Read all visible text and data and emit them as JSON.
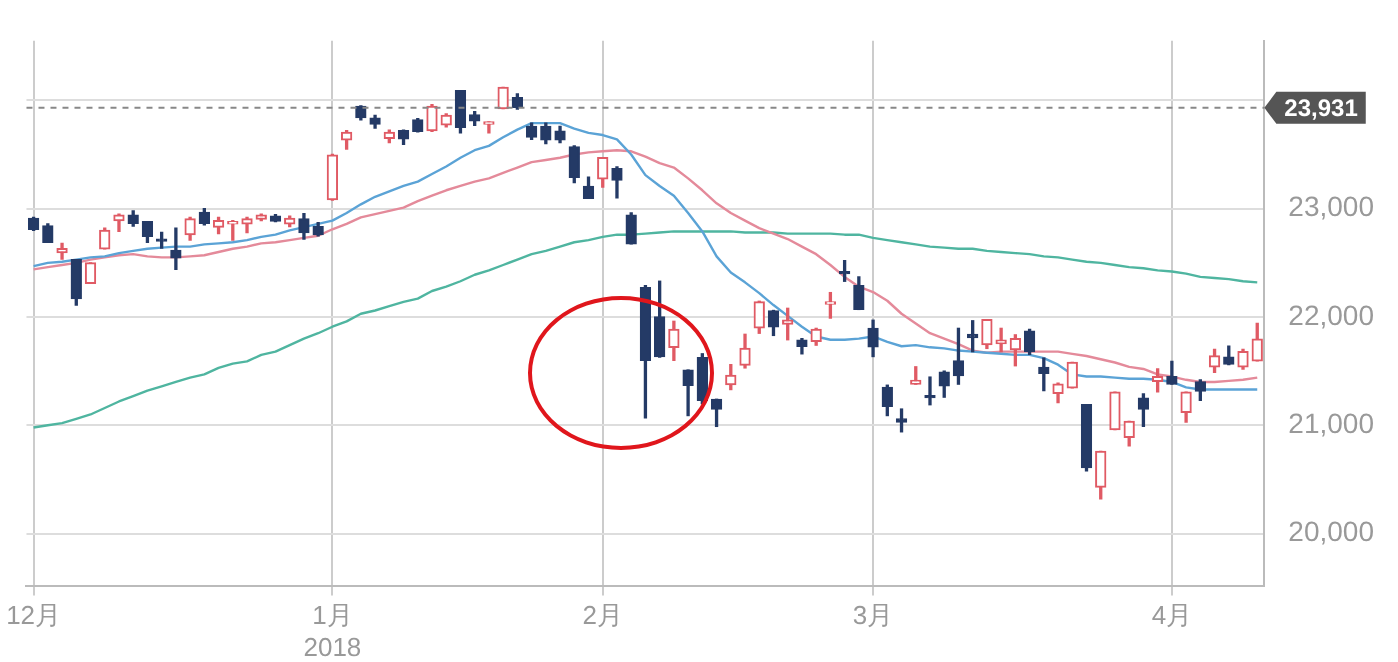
{
  "chart_data": {
    "type": "candlestick",
    "categories": [
      "12月",
      null,
      null,
      null,
      null,
      null,
      null,
      null,
      null,
      null,
      null,
      null,
      null,
      null,
      null,
      null,
      null,
      null,
      null,
      null,
      null,
      "1月\n2018",
      null,
      null,
      null,
      null,
      null,
      null,
      null,
      null,
      null,
      null,
      null,
      null,
      null,
      null,
      null,
      null,
      null,
      null,
      "2月",
      null,
      null,
      null,
      null,
      null,
      null,
      null,
      null,
      null,
      null,
      null,
      null,
      null,
      null,
      null,
      null,
      null,
      null,
      "3月",
      null,
      null,
      null,
      null,
      null,
      null,
      null,
      null,
      null,
      null,
      null,
      null,
      null,
      null,
      null,
      null,
      null,
      null,
      null,
      null,
      "4月",
      null,
      null,
      null,
      null,
      null,
      null
    ],
    "ohlc": [
      [
        22910,
        22920,
        22800,
        22810
      ],
      [
        22840,
        22860,
        22690,
        22690
      ],
      [
        22595,
        22680,
        22535,
        22630
      ],
      [
        22530,
        22530,
        22110,
        22170
      ],
      [
        22310,
        22500,
        22310,
        22500
      ],
      [
        22630,
        22820,
        22630,
        22800
      ],
      [
        22890,
        22950,
        22790,
        22940
      ],
      [
        22940,
        22980,
        22840,
        22865
      ],
      [
        22880,
        22880,
        22690,
        22745
      ],
      [
        22705,
        22780,
        22635,
        22700
      ],
      [
        22615,
        22820,
        22440,
        22545
      ],
      [
        22760,
        22920,
        22710,
        22905
      ],
      [
        22965,
        23000,
        22850,
        22865
      ],
      [
        22830,
        22920,
        22770,
        22890
      ],
      [
        22860,
        22890,
        22710,
        22880
      ],
      [
        22860,
        22920,
        22780,
        22905
      ],
      [
        22905,
        22950,
        22890,
        22940
      ],
      [
        22930,
        22945,
        22880,
        22885
      ],
      [
        22860,
        22930,
        22835,
        22910
      ],
      [
        22905,
        22955,
        22720,
        22780
      ],
      [
        22835,
        22870,
        22750,
        22760
      ],
      [
        23085,
        23500,
        23080,
        23495
      ],
      [
        23635,
        23720,
        23550,
        23705
      ],
      [
        23945,
        23950,
        23820,
        23840
      ],
      [
        23835,
        23860,
        23745,
        23780
      ],
      [
        23650,
        23725,
        23610,
        23705
      ],
      [
        23720,
        23725,
        23595,
        23645
      ],
      [
        23820,
        23830,
        23710,
        23715
      ],
      [
        23720,
        23960,
        23715,
        23945
      ],
      [
        23775,
        23875,
        23755,
        23860
      ],
      [
        24090,
        24090,
        23700,
        23750
      ],
      [
        23865,
        23895,
        23770,
        23810
      ],
      [
        23780,
        23800,
        23700,
        23800
      ],
      [
        23925,
        24120,
        23925,
        24120
      ],
      [
        24025,
        24060,
        23920,
        23935
      ],
      [
        23760,
        23790,
        23640,
        23660
      ],
      [
        23760,
        23790,
        23600,
        23635
      ],
      [
        23715,
        23760,
        23610,
        23635
      ],
      [
        23570,
        23580,
        23240,
        23290
      ],
      [
        23205,
        23290,
        23095,
        23095
      ],
      [
        23275,
        23470,
        23200,
        23470
      ],
      [
        23370,
        23385,
        23100,
        23265
      ],
      [
        22940,
        22960,
        22675,
        22675
      ],
      [
        22270,
        22290,
        21070,
        21600
      ],
      [
        22000,
        22330,
        21630,
        21635
      ],
      [
        21720,
        21960,
        21600,
        21885
      ],
      [
        21510,
        21510,
        21090,
        21370
      ],
      [
        21625,
        21660,
        21200,
        21230
      ],
      [
        21240,
        21240,
        20990,
        21150
      ],
      [
        21375,
        21560,
        21330,
        21460
      ],
      [
        21555,
        21840,
        21530,
        21710
      ],
      [
        21900,
        22145,
        21850,
        22140
      ],
      [
        22055,
        22060,
        21830,
        21910
      ],
      [
        21935,
        22080,
        21790,
        21970
      ],
      [
        21785,
        21800,
        21660,
        21730
      ],
      [
        21775,
        21895,
        21740,
        21885
      ],
      [
        22120,
        22225,
        21990,
        22135
      ],
      [
        22410,
        22520,
        22330,
        22400
      ],
      [
        22290,
        22370,
        22070,
        22070
      ],
      [
        21895,
        21970,
        21635,
        21725
      ],
      [
        21350,
        21370,
        21090,
        21175
      ],
      [
        21060,
        21150,
        20940,
        21030
      ],
      [
        21380,
        21540,
        21380,
        21415
      ],
      [
        21270,
        21445,
        21190,
        21255
      ],
      [
        21490,
        21500,
        21260,
        21365
      ],
      [
        21595,
        21895,
        21380,
        21460
      ],
      [
        21840,
        21965,
        21680,
        21810
      ],
      [
        21745,
        21975,
        21710,
        21975
      ],
      [
        21755,
        21895,
        21680,
        21785
      ],
      [
        21700,
        21835,
        21550,
        21800
      ],
      [
        21870,
        21885,
        21655,
        21680
      ],
      [
        21535,
        21620,
        21320,
        21480
      ],
      [
        21295,
        21390,
        21210,
        21380
      ],
      [
        21345,
        21580,
        21345,
        21580
      ],
      [
        21190,
        21190,
        20580,
        20610
      ],
      [
        20430,
        20760,
        20320,
        20760
      ],
      [
        20960,
        21305,
        20960,
        21305
      ],
      [
        20890,
        21035,
        20810,
        21035
      ],
      [
        21250,
        21290,
        20990,
        21150
      ],
      [
        21405,
        21520,
        21310,
        21450
      ],
      [
        21450,
        21590,
        21380,
        21380
      ],
      [
        21120,
        21305,
        21030,
        21305
      ],
      [
        21400,
        21420,
        21230,
        21315
      ],
      [
        21540,
        21700,
        21490,
        21640
      ],
      [
        21630,
        21730,
        21560,
        21565
      ],
      [
        21540,
        21700,
        21520,
        21680
      ],
      [
        21595,
        21940,
        21595,
        21795
      ]
    ],
    "colors": [
      "#243a66",
      "#243a66",
      "#e05a64",
      "#243a66",
      "#e05a64",
      "#e05a64",
      "#e05a64",
      "#243a66",
      "#243a66",
      "#243a66",
      "#243a66",
      "#e05a64",
      "#243a66",
      "#e05a64",
      "#e05a64",
      "#e05a64",
      "#e05a64",
      "#243a66",
      "#e05a64",
      "#243a66",
      "#243a66",
      "#e05a64",
      "#e05a64",
      "#243a66",
      "#243a66",
      "#e05a64",
      "#243a66",
      "#243a66",
      "#e05a64",
      "#e05a64",
      "#243a66",
      "#243a66",
      "#e05a64",
      "#e05a64",
      "#243a66",
      "#243a66",
      "#243a66",
      "#243a66",
      "#243a66",
      "#243a66",
      "#e05a64",
      "#243a66",
      "#243a66",
      "#243a66",
      "#243a66",
      "#e05a64",
      "#243a66",
      "#243a66",
      "#243a66",
      "#e05a64",
      "#e05a64",
      "#e05a64",
      "#243a66",
      "#e05a64",
      "#243a66",
      "#e05a64",
      "#e05a64",
      "#243a66",
      "#243a66",
      "#243a66",
      "#243a66",
      "#243a66",
      "#e05a64",
      "#243a66",
      "#243a66",
      "#243a66",
      "#243a66",
      "#e05a64",
      "#e05a64",
      "#e05a64",
      "#243a66",
      "#243a66",
      "#e05a64",
      "#e05a64",
      "#243a66",
      "#e05a64",
      "#e05a64",
      "#e05a64",
      "#243a66",
      "#e05a64",
      "#243a66",
      "#e05a64",
      "#243a66",
      "#e05a64",
      "#243a66",
      "#e05a64",
      "#e05a64"
    ],
    "series": [
      {
        "type": "line",
        "color": "#5ba3d6",
        "values": [
          22470,
          22500,
          22510,
          22530,
          22550,
          22560,
          22590,
          22610,
          22630,
          22640,
          22650,
          22650,
          22670,
          22680,
          22690,
          22710,
          22740,
          22760,
          22800,
          22830,
          22860,
          22890,
          22960,
          23040,
          23110,
          23160,
          23210,
          23250,
          23320,
          23390,
          23470,
          23540,
          23580,
          23660,
          23730,
          23790,
          23790,
          23790,
          23740,
          23700,
          23680,
          23640,
          23500,
          23310,
          23210,
          23120,
          22960,
          22790,
          22560,
          22410,
          22320,
          22220,
          22110,
          22010,
          21910,
          21820,
          21790,
          21790,
          21800,
          21820,
          21770,
          21730,
          21740,
          21720,
          21710,
          21690,
          21680,
          21670,
          21660,
          21650,
          21650,
          21620,
          21560,
          21470,
          21450,
          21450,
          21440,
          21430,
          21430,
          21420,
          21400,
          21350,
          21330,
          21330,
          21330,
          21330,
          21330
        ]
      },
      {
        "type": "line",
        "color": "#e48a9a",
        "values": [
          22440,
          22460,
          22480,
          22500,
          22530,
          22550,
          22570,
          22580,
          22560,
          22550,
          22550,
          22560,
          22570,
          22600,
          22630,
          22650,
          22680,
          22690,
          22710,
          22730,
          22750,
          22810,
          22860,
          22920,
          22950,
          22980,
          23010,
          23070,
          23120,
          23170,
          23210,
          23250,
          23280,
          23330,
          23380,
          23430,
          23450,
          23470,
          23500,
          23520,
          23530,
          23540,
          23530,
          23480,
          23420,
          23380,
          23280,
          23170,
          23050,
          22960,
          22890,
          22820,
          22770,
          22720,
          22650,
          22580,
          22480,
          22370,
          22280,
          22230,
          22150,
          22030,
          21940,
          21850,
          21800,
          21750,
          21690,
          21670,
          21680,
          21680,
          21680,
          21680,
          21680,
          21660,
          21640,
          21610,
          21580,
          21540,
          21520,
          21470,
          21450,
          21420,
          21400,
          21400,
          21410,
          21420,
          21440
        ]
      },
      {
        "type": "line",
        "color": "#4fb5a0",
        "values": [
          20980,
          21000,
          21020,
          21060,
          21100,
          21160,
          21220,
          21270,
          21320,
          21360,
          21400,
          21440,
          21470,
          21530,
          21570,
          21590,
          21650,
          21680,
          21740,
          21800,
          21850,
          21910,
          21960,
          22030,
          22060,
          22100,
          22140,
          22170,
          22240,
          22280,
          22330,
          22390,
          22430,
          22480,
          22530,
          22580,
          22610,
          22650,
          22690,
          22710,
          22740,
          22760,
          22760,
          22770,
          22780,
          22790,
          22790,
          22790,
          22790,
          22790,
          22780,
          22780,
          22780,
          22770,
          22770,
          22770,
          22770,
          22760,
          22760,
          22730,
          22710,
          22690,
          22670,
          22650,
          22640,
          22630,
          22630,
          22610,
          22600,
          22590,
          22580,
          22560,
          22550,
          22530,
          22510,
          22500,
          22480,
          22460,
          22450,
          22430,
          22420,
          22400,
          22370,
          22360,
          22350,
          22330,
          22320
        ]
      }
    ],
    "ylim": [
      19520,
      24550
    ],
    "yticks": [
      {
        "value": 20000,
        "label": "20,000"
      },
      {
        "value": 21000,
        "label": "21,000"
      },
      {
        "value": 22000,
        "label": "22,000"
      },
      {
        "value": 23000,
        "label": "23,000"
      },
      {
        "value": 24000,
        "label": null
      }
    ],
    "ref_lines": [
      {
        "axis": "y",
        "value": 23931,
        "label": "23,931",
        "color": "#888888",
        "line_style": "dashed"
      }
    ],
    "grid": true
  }
}
